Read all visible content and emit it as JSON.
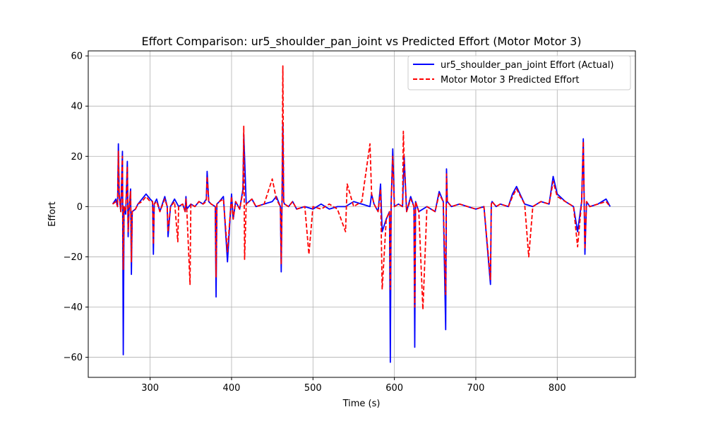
{
  "chart_data": {
    "type": "line",
    "title": "Effort Comparison: ur5_shoulder_pan_joint vs Predicted Effort (Motor Motor 3)",
    "xlabel": "Time (s)",
    "ylabel": "Effort",
    "xlim": [
      224,
      896
    ],
    "ylim": [
      -68,
      62
    ],
    "xticks": [
      300,
      400,
      500,
      600,
      700,
      800
    ],
    "yticks": [
      -60,
      -40,
      -20,
      0,
      20,
      40,
      60
    ],
    "xtick_labels": [
      "300",
      "400",
      "500",
      "600",
      "700",
      "800"
    ],
    "ytick_labels": [
      "−60",
      "−40",
      "−20",
      "0",
      "20",
      "40",
      "60"
    ],
    "grid": true,
    "legend_position": "top-right",
    "series": [
      {
        "name": "ur5_shoulder_pan_joint Effort (Actual)",
        "color": "#0000ff",
        "style": "solid",
        "x": [
          254,
          258,
          260,
          261,
          262,
          264,
          266,
          267,
          268,
          270,
          272,
          273,
          274,
          276,
          277,
          278,
          282,
          285,
          290,
          295,
          300,
          303,
          304,
          305,
          308,
          312,
          318,
          321,
          322,
          325,
          330,
          335,
          340,
          343,
          344,
          345,
          350,
          355,
          360,
          365,
          369,
          370,
          372,
          375,
          380,
          381,
          382,
          385,
          390,
          395,
          399,
          400,
          402,
          405,
          410,
          414,
          415,
          418,
          425,
          430,
          440,
          450,
          455,
          460,
          461,
          462,
          463,
          464,
          465,
          470,
          475,
          480,
          490,
          500,
          510,
          520,
          530,
          540,
          550,
          560,
          570,
          572,
          575,
          580,
          583,
          585,
          590,
          594,
          595,
          596,
          598,
          600,
          605,
          610,
          612,
          615,
          620,
          624,
          625,
          626,
          630,
          640,
          650,
          655,
          660,
          663,
          664,
          665,
          670,
          680,
          690,
          700,
          710,
          718,
          719,
          720,
          725,
          730,
          740,
          745,
          750,
          760,
          770,
          780,
          790,
          795,
          800,
          810,
          820,
          825,
          830,
          832,
          834,
          836,
          840,
          850,
          860,
          865
        ],
        "values": [
          1,
          3,
          0,
          25,
          5,
          -2,
          22,
          -59,
          0,
          -3,
          18,
          -12,
          -2,
          7,
          -27,
          -2,
          -1,
          1,
          3,
          5,
          3,
          2,
          -19,
          1,
          3,
          -2,
          4,
          0,
          -12,
          0,
          3,
          0,
          1,
          -2,
          4,
          -1,
          1,
          0,
          2,
          1,
          3,
          14,
          2,
          1,
          0,
          -36,
          1,
          2,
          4,
          -22,
          0,
          5,
          -5,
          2,
          -1,
          7,
          29,
          1,
          3,
          0,
          1,
          2,
          4,
          0,
          -26,
          3,
          33,
          2,
          1,
          0,
          2,
          -1,
          0,
          -1,
          1,
          -1,
          0,
          0,
          2,
          1,
          0,
          5,
          1,
          -2,
          9,
          -10,
          -5,
          -2,
          -62,
          1,
          23,
          0,
          1,
          0,
          20,
          -2,
          4,
          0,
          -56,
          2,
          -2,
          0,
          -2,
          6,
          2,
          -49,
          15,
          2,
          0,
          1,
          0,
          -1,
          0,
          -31,
          1,
          2,
          0,
          1,
          0,
          5,
          8,
          1,
          0,
          2,
          1,
          12,
          5,
          2,
          0,
          -10,
          2,
          27,
          -19,
          2,
          0,
          1,
          3,
          0
        ]
      },
      {
        "name": "Motor Motor 3 Predicted Effort",
        "color": "#ff0000",
        "style": "dashed",
        "x": [
          254,
          258,
          260,
          261,
          262,
          264,
          266,
          267,
          268,
          270,
          272,
          273,
          274,
          276,
          277,
          278,
          282,
          285,
          290,
          295,
          300,
          303,
          304,
          305,
          308,
          312,
          318,
          321,
          322,
          325,
          330,
          334,
          335,
          340,
          343,
          344,
          345,
          349,
          350,
          355,
          360,
          365,
          369,
          370,
          372,
          375,
          380,
          381,
          382,
          385,
          390,
          395,
          399,
          400,
          402,
          405,
          410,
          414,
          415,
          416,
          418,
          425,
          430,
          440,
          450,
          455,
          460,
          461,
          462,
          463,
          464,
          465,
          470,
          475,
          480,
          490,
          495,
          500,
          510,
          520,
          530,
          540,
          542,
          550,
          560,
          570,
          572,
          575,
          580,
          583,
          585,
          590,
          594,
          595,
          596,
          598,
          600,
          605,
          610,
          611,
          612,
          615,
          620,
          624,
          625,
          626,
          630,
          635,
          640,
          650,
          655,
          660,
          663,
          664,
          665,
          670,
          680,
          690,
          700,
          710,
          718,
          719,
          720,
          725,
          730,
          740,
          745,
          750,
          760,
          765,
          770,
          780,
          790,
          795,
          800,
          810,
          820,
          825,
          830,
          832,
          834,
          836,
          840,
          850,
          860,
          865
        ],
        "values": [
          1,
          2,
          0,
          22,
          4,
          -2,
          20,
          -25,
          0,
          -2,
          16,
          -10,
          -2,
          6,
          -22,
          -2,
          -1,
          1,
          2,
          4,
          2,
          2,
          -15,
          1,
          2,
          -2,
          3,
          0,
          -10,
          0,
          2,
          -14,
          0,
          1,
          -2,
          3,
          -1,
          -31,
          1,
          0,
          2,
          1,
          2,
          12,
          2,
          1,
          0,
          -28,
          1,
          2,
          3,
          -18,
          0,
          4,
          -5,
          2,
          -1,
          6,
          32,
          -21,
          1,
          3,
          0,
          1,
          11,
          3,
          0,
          -23,
          3,
          56,
          2,
          1,
          0,
          2,
          -1,
          0,
          -19,
          0,
          -1,
          1,
          -1,
          -10,
          9,
          0,
          2,
          25,
          5,
          1,
          -2,
          7,
          -33,
          -5,
          -2,
          -33,
          1,
          20,
          0,
          1,
          0,
          30,
          18,
          -2,
          3,
          0,
          -40,
          2,
          -2,
          -41,
          0,
          -2,
          5,
          2,
          -35,
          13,
          2,
          0,
          1,
          0,
          -1,
          0,
          -29,
          1,
          2,
          0,
          1,
          0,
          4,
          7,
          1,
          -20,
          0,
          2,
          1,
          10,
          4,
          2,
          0,
          -16,
          2,
          26,
          -17,
          2,
          0,
          1,
          2,
          0
        ]
      }
    ]
  }
}
